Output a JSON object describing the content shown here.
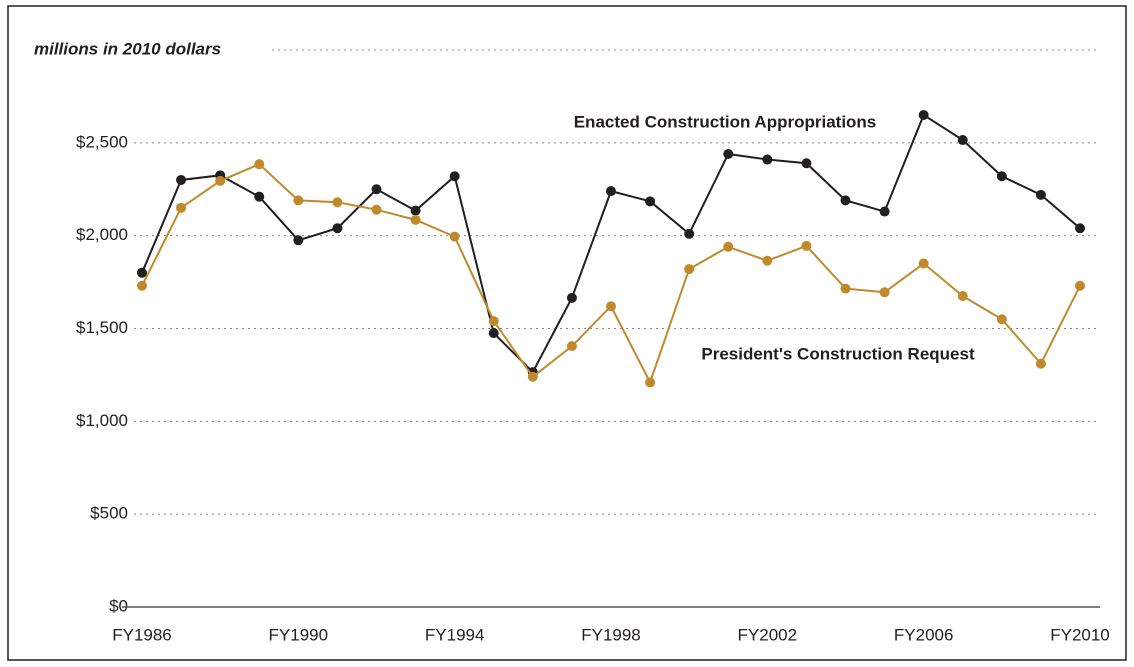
{
  "chart_data": {
    "type": "line",
    "y_axis_label": "millions in 2010 dollars",
    "categories": [
      "FY1986",
      null,
      null,
      null,
      "FY1990",
      null,
      null,
      null,
      "FY1994",
      null,
      null,
      null,
      "FY1998",
      null,
      null,
      null,
      "FY2002",
      null,
      null,
      null,
      "FY2006",
      null,
      null,
      null,
      "FY2010"
    ],
    "series": [
      {
        "name": "Enacted Construction Appropriations",
        "color": "#231f20",
        "values": [
          1800,
          2300,
          2325,
          2210,
          1975,
          2040,
          2250,
          2135,
          2320,
          1475,
          1265,
          1665,
          2240,
          2185,
          2010,
          2440,
          2410,
          2390,
          2190,
          2130,
          2650,
          2515,
          2320,
          2220,
          2040
        ]
      },
      {
        "name": "President's Construction Request",
        "color": "#c08a2c",
        "values": [
          1730,
          2150,
          2295,
          2385,
          2190,
          2180,
          2140,
          2085,
          1995,
          1540,
          1240,
          1405,
          1620,
          1210,
          1820,
          1940,
          1865,
          1945,
          1715,
          1695,
          1850,
          1675,
          1550,
          1310,
          1730
        ]
      }
    ],
    "ylim": [
      0,
      3000
    ],
    "yticks": [
      {
        "value": 0,
        "label": "$0"
      },
      {
        "value": 500,
        "label": "$500"
      },
      {
        "value": 1000,
        "label": "$1,000"
      },
      {
        "value": 1500,
        "label": "$1,500"
      },
      {
        "value": 2000,
        "label": "$2,000"
      },
      {
        "value": 2500,
        "label": "$2,500"
      }
    ],
    "grid": true
  }
}
